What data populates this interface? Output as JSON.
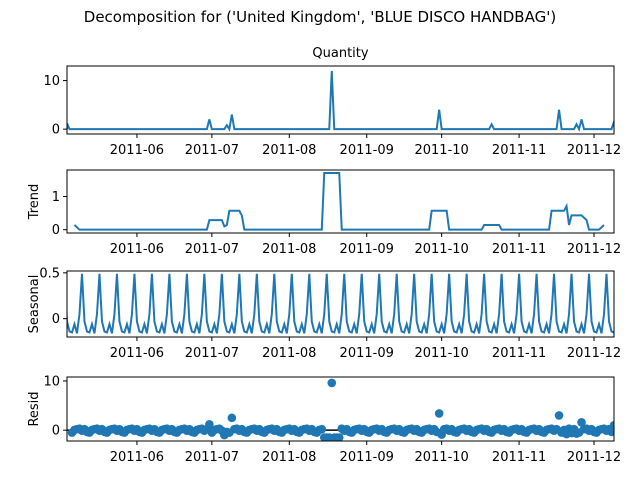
{
  "figure": {
    "suptitle": "Decomposition for ('United Kingdom', 'BLUE DISCO HANDBAG')"
  },
  "chart_data": [
    {
      "type": "line",
      "title": "Quantity",
      "ylabel": "",
      "ylim": [
        -1,
        13
      ],
      "yticks": [
        0,
        10
      ],
      "x_range": [
        "2011-05-04",
        "2011-12-09"
      ],
      "xticks": [
        "2011-06",
        "2011-07",
        "2011-08",
        "2011-09",
        "2011-10",
        "2011-11",
        "2011-12"
      ],
      "baseline": 0,
      "series": [
        {
          "color": "#1f77b4",
          "spikes": [
            {
              "x": "2011-06-30",
              "y": 2
            },
            {
              "x": "2011-07-07",
              "y": 0.8
            },
            {
              "x": "2011-07-09",
              "y": 3
            },
            {
              "x": "2011-08-18",
              "y": 12
            },
            {
              "x": "2011-09-30",
              "y": 4
            },
            {
              "x": "2011-10-21",
              "y": 1
            },
            {
              "x": "2011-11-17",
              "y": 4
            },
            {
              "x": "2011-11-24",
              "y": 1
            },
            {
              "x": "2011-11-26",
              "y": 2
            },
            {
              "x": "2011-12-09",
              "y": 1.5
            }
          ]
        }
      ]
    },
    {
      "type": "line",
      "title": "",
      "ylabel": "Trend",
      "ylim": [
        -0.1,
        1.8
      ],
      "yticks": [
        0,
        1
      ],
      "x_range": [
        "2011-05-04",
        "2011-12-09"
      ],
      "xticks": [
        "2011-06",
        "2011-07",
        "2011-08",
        "2011-09",
        "2011-10",
        "2011-11",
        "2011-12"
      ],
      "series": [
        {
          "color": "#1f77b4",
          "points": [
            {
              "x": "2011-05-07",
              "y": 0.14
            },
            {
              "x": "2011-05-09",
              "y": 0
            },
            {
              "x": "2011-06-29",
              "y": 0
            },
            {
              "x": "2011-06-30",
              "y": 0.29
            },
            {
              "x": "2011-07-05",
              "y": 0.29
            },
            {
              "x": "2011-07-06",
              "y": 0.1
            },
            {
              "x": "2011-07-07",
              "y": 0.14
            },
            {
              "x": "2011-07-08",
              "y": 0.57
            },
            {
              "x": "2011-07-12",
              "y": 0.57
            },
            {
              "x": "2011-07-13",
              "y": 0.43
            },
            {
              "x": "2011-07-14",
              "y": 0
            },
            {
              "x": "2011-08-14",
              "y": 0
            },
            {
              "x": "2011-08-15",
              "y": 1.71
            },
            {
              "x": "2011-08-21",
              "y": 1.71
            },
            {
              "x": "2011-08-22",
              "y": 0
            },
            {
              "x": "2011-09-26",
              "y": 0
            },
            {
              "x": "2011-09-27",
              "y": 0.57
            },
            {
              "x": "2011-10-03",
              "y": 0.57
            },
            {
              "x": "2011-10-04",
              "y": 0
            },
            {
              "x": "2011-10-17",
              "y": 0
            },
            {
              "x": "2011-10-18",
              "y": 0.14
            },
            {
              "x": "2011-10-24",
              "y": 0.14
            },
            {
              "x": "2011-10-25",
              "y": 0
            },
            {
              "x": "2011-11-13",
              "y": 0
            },
            {
              "x": "2011-11-14",
              "y": 0.57
            },
            {
              "x": "2011-11-19",
              "y": 0.57
            },
            {
              "x": "2011-11-20",
              "y": 0.71
            },
            {
              "x": "2011-11-21",
              "y": 0.14
            },
            {
              "x": "2011-11-22",
              "y": 0.43
            },
            {
              "x": "2011-11-26",
              "y": 0.43
            },
            {
              "x": "2011-11-28",
              "y": 0.29
            },
            {
              "x": "2011-11-29",
              "y": 0
            },
            {
              "x": "2011-12-03",
              "y": 0
            },
            {
              "x": "2011-12-05",
              "y": 0.14
            }
          ]
        }
      ]
    },
    {
      "type": "line",
      "title": "",
      "ylabel": "Seasonal",
      "ylim": [
        -0.2,
        0.52
      ],
      "yticks": [
        0.0,
        0.5
      ],
      "x_range": [
        "2011-05-04",
        "2011-12-09"
      ],
      "xticks": [
        "2011-06",
        "2011-07",
        "2011-08",
        "2011-09",
        "2011-10",
        "2011-11",
        "2011-12"
      ],
      "series": [
        {
          "color": "#1f77b4",
          "period_days": 7,
          "first_peak": "2011-05-10",
          "pattern": [
            0.49,
            -0.03,
            -0.14,
            -0.15,
            -0.06,
            -0.16,
            0.05
          ]
        }
      ]
    },
    {
      "type": "scatter",
      "title": "",
      "ylabel": "Resid",
      "ylim": [
        -2.2,
        10.8
      ],
      "yticks": [
        0,
        10
      ],
      "x_range": [
        "2011-05-04",
        "2011-12-09"
      ],
      "xticks": [
        "2011-06",
        "2011-07",
        "2011-08",
        "2011-09",
        "2011-10",
        "2011-11",
        "2011-12"
      ],
      "baseline": 0,
      "series": [
        {
          "color": "#1f77b4",
          "notable_points": [
            {
              "x": "2011-06-30",
              "y": 1.2
            },
            {
              "x": "2011-07-06",
              "y": -1.0
            },
            {
              "x": "2011-07-09",
              "y": 2.5
            },
            {
              "x": "2011-08-15",
              "y": -1.5
            },
            {
              "x": "2011-08-16",
              "y": -1.5
            },
            {
              "x": "2011-08-17",
              "y": -1.5
            },
            {
              "x": "2011-08-18",
              "y": 9.6
            },
            {
              "x": "2011-08-19",
              "y": -1.5
            },
            {
              "x": "2011-08-20",
              "y": -1.5
            },
            {
              "x": "2011-08-21",
              "y": -1.5
            },
            {
              "x": "2011-09-30",
              "y": 3.4
            },
            {
              "x": "2011-10-01",
              "y": -0.9
            },
            {
              "x": "2011-11-17",
              "y": 3.0
            },
            {
              "x": "2011-11-20",
              "y": -0.8
            },
            {
              "x": "2011-11-22",
              "y": -0.6
            },
            {
              "x": "2011-11-24",
              "y": -0.7
            },
            {
              "x": "2011-11-26",
              "y": 1.6
            },
            {
              "x": "2011-12-09",
              "y": 1.0
            }
          ],
          "background_values": [
            -0.5,
            0.05,
            0.2,
            0.3,
            -0.1,
            0.2,
            -0.35
          ]
        }
      ]
    }
  ]
}
